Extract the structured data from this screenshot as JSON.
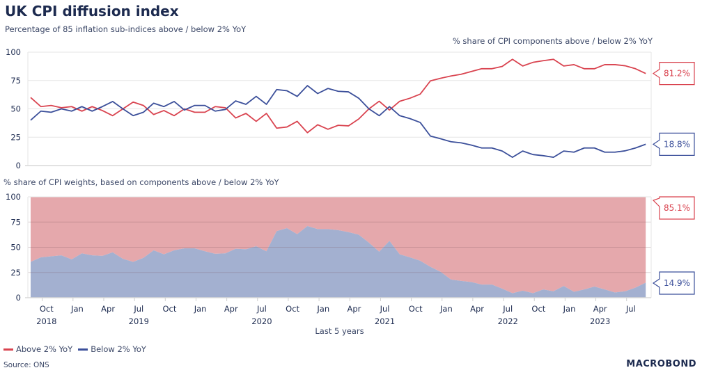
{
  "title": "UK CPI diffusion index",
  "subtitle": "Percentage of 85 inflation sub-indices above / below 2% YoY",
  "legend": [
    {
      "label": "Above 2% YoY",
      "color": "#d9434f"
    },
    {
      "label": "Below 2% YoY",
      "color": "#3b4f9a"
    }
  ],
  "source": "Source: ONS",
  "logo": "MACROBOND",
  "colors": {
    "above_line": "#d9434f",
    "below_line": "#3b4f9a",
    "above_fill": "#e5a8ac",
    "below_fill": "#a3b0d0"
  },
  "chart_data": [
    {
      "type": "line",
      "title": "% share of CPI components above / below 2% YoY",
      "x_start": "2018-08",
      "x_end": "2023-08",
      "frequency": "monthly",
      "ylim": [
        0,
        100
      ],
      "yticks": [
        "0",
        "25",
        "50",
        "75",
        "100"
      ],
      "grid": true,
      "series": [
        {
          "name": "Above 2% YoY",
          "last_label": "81.2%",
          "values": [
            60,
            52,
            53,
            51,
            52,
            48,
            52,
            48.5,
            44,
            50,
            56,
            53,
            45,
            48.5,
            44,
            50,
            47,
            47,
            52,
            51,
            42,
            46,
            39,
            46,
            33,
            34,
            39,
            29,
            36,
            32,
            35.5,
            35,
            41,
            50,
            56.7,
            49,
            56.7,
            59.4,
            63,
            74.7,
            77,
            79,
            80.5,
            83,
            85.4,
            85.4,
            87.4,
            93.7,
            87.8,
            91,
            92.5,
            93.7,
            87.8,
            89,
            85.4,
            85.4,
            89,
            89,
            88,
            85.4,
            81.2
          ]
        },
        {
          "name": "Below 2% YoY",
          "last_label": "18.8%",
          "values": [
            40,
            48,
            47,
            50,
            48,
            52,
            48,
            52,
            56.5,
            50,
            44,
            47,
            55,
            52,
            56.5,
            49,
            53,
            53,
            48,
            49.5,
            57,
            54,
            61,
            54,
            67,
            66,
            61,
            70.5,
            63.5,
            68,
            65.5,
            65,
            59.4,
            50,
            44,
            52,
            44,
            41.4,
            38,
            26,
            23.6,
            21,
            20,
            18,
            15.5,
            15.5,
            12.8,
            7.3,
            12.8,
            9.7,
            8.7,
            7.3,
            12.8,
            11.8,
            15.5,
            15.5,
            11.8,
            11.8,
            13,
            15.5,
            18.8
          ]
        }
      ]
    },
    {
      "type": "area",
      "title": "% share of CPI weights, based on components above / below 2% YoY",
      "stacked": true,
      "x_start": "2018-08",
      "x_end": "2023-08",
      "frequency": "monthly",
      "ylim": [
        0,
        100
      ],
      "yticks": [
        "0",
        "25",
        "50",
        "75",
        "100"
      ],
      "grid": true,
      "xlabel": "Last 5 years",
      "xticks": [
        {
          "month": "Oct",
          "year": "2018"
        },
        {
          "month": "Jan"
        },
        {
          "month": "Apr"
        },
        {
          "month": "Jul",
          "year": "2019"
        },
        {
          "month": "Oct"
        },
        {
          "month": "Jan"
        },
        {
          "month": "Apr"
        },
        {
          "month": "Jul",
          "year": "2020"
        },
        {
          "month": "Oct"
        },
        {
          "month": "Jan"
        },
        {
          "month": "Apr"
        },
        {
          "month": "Jul",
          "year": "2021"
        },
        {
          "month": "Oct"
        },
        {
          "month": "Jan"
        },
        {
          "month": "Apr"
        },
        {
          "month": "Jul",
          "year": "2022"
        },
        {
          "month": "Oct"
        },
        {
          "month": "Jan"
        },
        {
          "month": "Apr",
          "year": "2023"
        },
        {
          "month": "Jul"
        }
      ],
      "series": [
        {
          "name": "Above 2% YoY",
          "last_label": "85.1%",
          "note": "fills from below-series up to 100"
        },
        {
          "name": "Below 2% YoY",
          "last_label": "14.9%",
          "values": [
            35.5,
            40,
            41,
            42,
            38,
            44,
            42,
            41.5,
            45,
            38.5,
            35.5,
            39.5,
            47,
            43,
            47,
            49,
            49,
            46,
            43.5,
            44,
            48.5,
            48,
            51,
            46,
            66,
            69,
            63,
            71,
            68,
            68,
            67,
            65,
            62.5,
            54.6,
            45.6,
            56.3,
            43,
            40,
            36.6,
            30.6,
            25.6,
            18,
            16.6,
            15.5,
            13,
            13,
            9,
            4.5,
            7,
            4.5,
            8.2,
            6.4,
            11.6,
            5.9,
            8.2,
            11,
            8.2,
            5.2,
            6.4,
            10,
            14.9
          ]
        }
      ]
    }
  ]
}
